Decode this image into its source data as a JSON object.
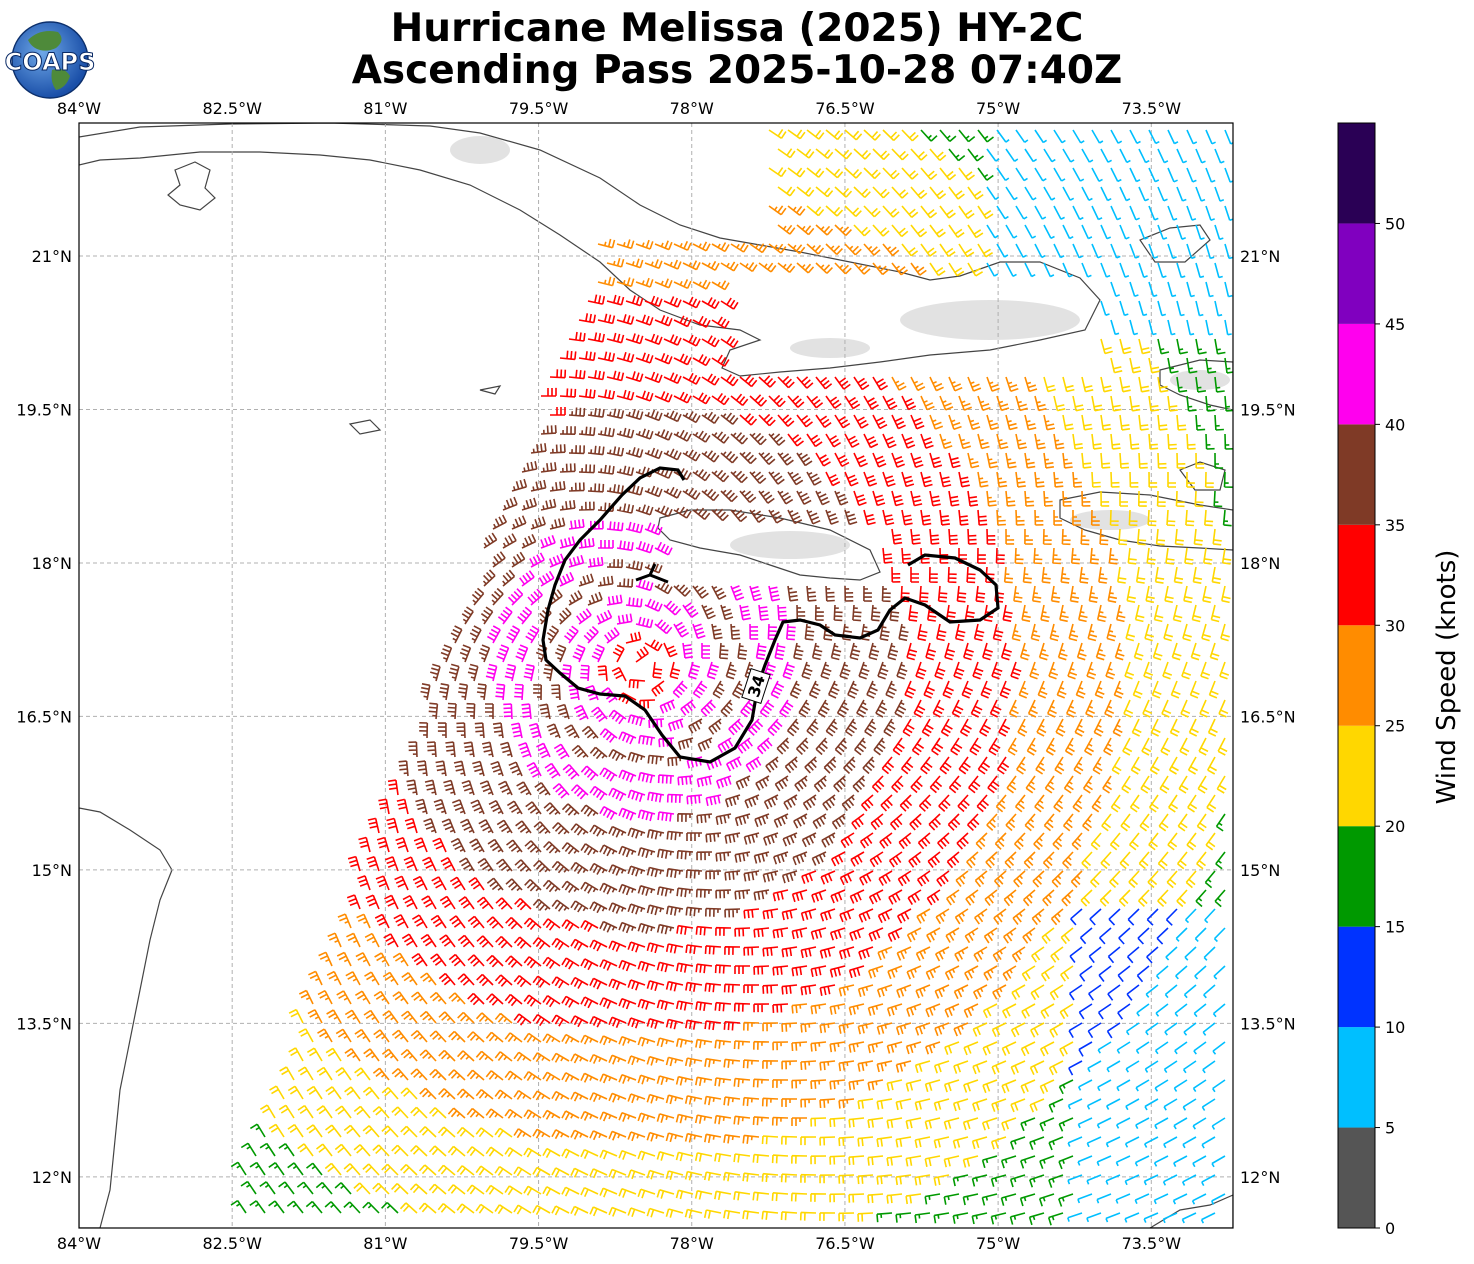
{
  "title": {
    "line1": "Hurricane Melissa (2025) HY-2C",
    "line2": "Ascending Pass 2025-10-28 07:40Z"
  },
  "logo": {
    "text": "COAPS"
  },
  "map": {
    "lon_range": [
      -84.0,
      -72.7
    ],
    "lat_range": [
      11.5,
      22.3
    ],
    "lon_ticks": [
      {
        "value": -84.0,
        "label": "84°W"
      },
      {
        "value": -82.5,
        "label": "82.5°W"
      },
      {
        "value": -81.0,
        "label": "81°W"
      },
      {
        "value": -79.5,
        "label": "79.5°W"
      },
      {
        "value": -78.0,
        "label": "78°W"
      },
      {
        "value": -76.5,
        "label": "76.5°W"
      },
      {
        "value": -75.0,
        "label": "75°W"
      },
      {
        "value": -73.5,
        "label": "73.5°W"
      }
    ],
    "lat_ticks": [
      {
        "value": 21.0,
        "label": "21°N"
      },
      {
        "value": 19.5,
        "label": "19.5°N"
      },
      {
        "value": 18.0,
        "label": "18°N"
      },
      {
        "value": 16.5,
        "label": "16.5°N"
      },
      {
        "value": 15.0,
        "label": "15°N"
      },
      {
        "value": 13.5,
        "label": "13.5°N"
      },
      {
        "value": 12.0,
        "label": "12°N"
      }
    ],
    "grid": true,
    "storm_center": {
      "lon": -78.5,
      "lat": 17.0
    },
    "contour": {
      "label": "34"
    }
  },
  "colorbar": {
    "label": "Wind Speed (knots)",
    "ticks": [
      {
        "value": 0,
        "label": "0"
      },
      {
        "value": 5,
        "label": "5"
      },
      {
        "value": 10,
        "label": "10"
      },
      {
        "value": 15,
        "label": "15"
      },
      {
        "value": 20,
        "label": "20"
      },
      {
        "value": 25,
        "label": "25"
      },
      {
        "value": 30,
        "label": "30"
      },
      {
        "value": 35,
        "label": "35"
      },
      {
        "value": 40,
        "label": "40"
      },
      {
        "value": 45,
        "label": "45"
      },
      {
        "value": 50,
        "label": "50"
      }
    ],
    "bins": [
      {
        "min": 0,
        "max": 5,
        "color": "#555555"
      },
      {
        "min": 5,
        "max": 10,
        "color": "#00bfff"
      },
      {
        "min": 10,
        "max": 15,
        "color": "#0033ff"
      },
      {
        "min": 15,
        "max": 20,
        "color": "#009900"
      },
      {
        "min": 20,
        "max": 25,
        "color": "#ffd700"
      },
      {
        "min": 25,
        "max": 30,
        "color": "#ff8c00"
      },
      {
        "min": 30,
        "max": 35,
        "color": "#ff0000"
      },
      {
        "min": 35,
        "max": 40,
        "color": "#7f3a26"
      },
      {
        "min": 40,
        "max": 45,
        "color": "#ff00ee"
      },
      {
        "min": 45,
        "max": 50,
        "color": "#8000bf"
      },
      {
        "min": 50,
        "max": 55,
        "color": "#2a0055"
      }
    ]
  }
}
